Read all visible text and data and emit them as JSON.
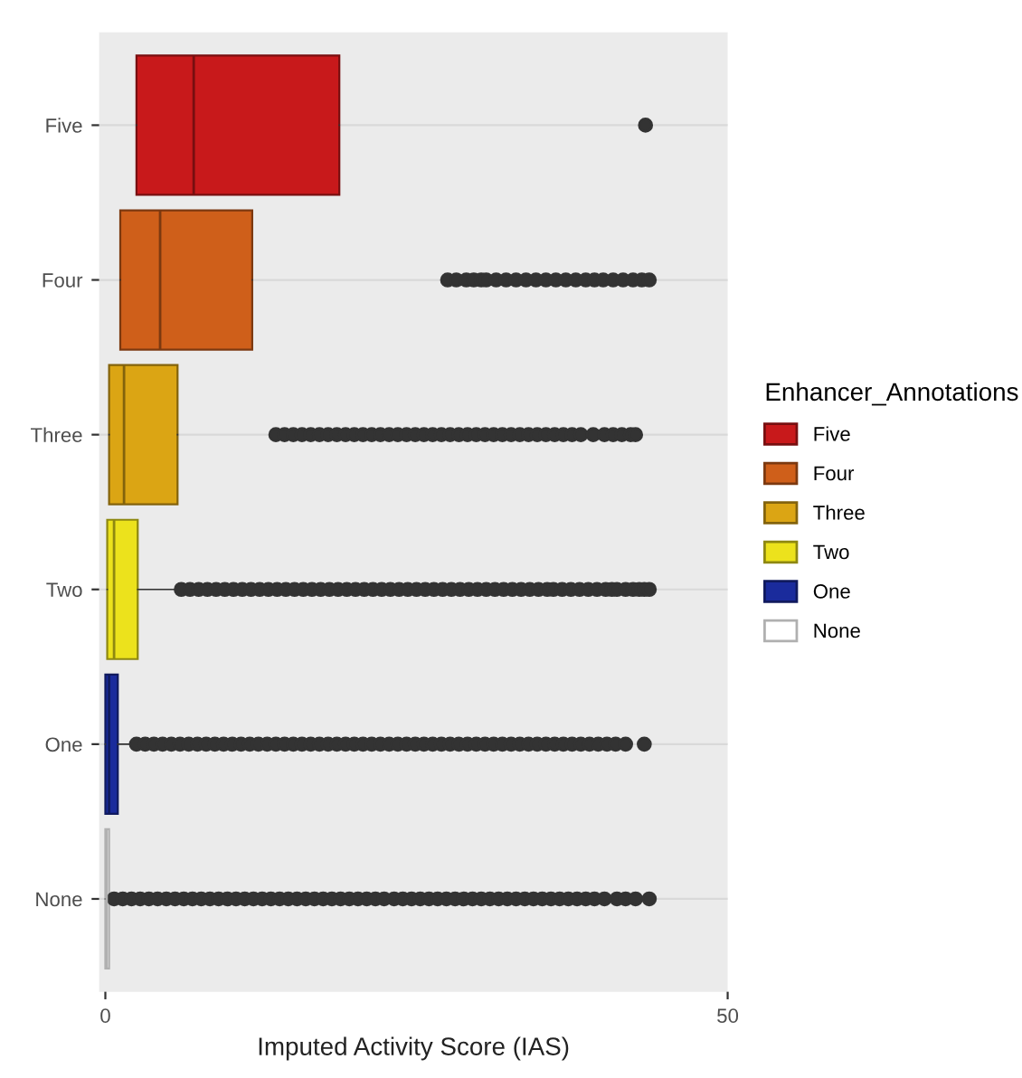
{
  "chart_data": {
    "type": "box",
    "orientation": "horizontal",
    "categories": [
      "Five",
      "Four",
      "Three",
      "Two",
      "One",
      "None"
    ],
    "series": [
      {
        "name": "Five",
        "color": "#c8191b",
        "boxes": [
          {
            "low": 2.5,
            "q1": 2.5,
            "median": 7.1,
            "q3": 18.8,
            "high": 18.8,
            "outliers": [
              43.4
            ]
          },
          null,
          null,
          null,
          null,
          null
        ]
      },
      {
        "name": "Four",
        "color": "#cf5f1a",
        "boxes": [
          null,
          {
            "low": 1.2,
            "q1": 1.2,
            "median": 4.4,
            "q3": 11.8,
            "high": 11.8,
            "outliers": [
              27.5,
              28.2,
              29,
              29.6,
              30.2,
              30.6,
              31.4,
              32.2,
              33,
              33.8,
              34.6,
              35.4,
              36.2,
              37,
              37.8,
              38.6,
              39.3,
              40,
              40.8,
              41.6,
              42.4,
              43.1,
              43.7
            ]
          },
          null,
          null,
          null,
          null
        ]
      },
      {
        "name": "Three",
        "color": "#dba514",
        "boxes": [
          null,
          null,
          {
            "low": 0.3,
            "q1": 0.3,
            "median": 1.5,
            "q3": 5.8,
            "high": 5.8,
            "outliers": [
              13.7,
              14.4,
              15.1,
              15.8,
              16.5,
              17.2,
              17.9,
              18.6,
              19.3,
              20,
              20.7,
              21.4,
              22.1,
              22.8,
              23.5,
              24.2,
              24.9,
              25.6,
              26.3,
              27,
              27.7,
              28.4,
              29.1,
              29.8,
              30.5,
              31.2,
              31.9,
              32.6,
              33.3,
              34,
              34.7,
              35.4,
              36.1,
              36.8,
              37.5,
              38.2,
              39.2,
              40.1,
              40.8,
              41.5,
              42.2,
              42.6
            ]
          },
          null,
          null,
          null
        ]
      },
      {
        "name": "Two",
        "color": "#ece21c",
        "boxes": [
          null,
          null,
          null,
          {
            "low": 0.15,
            "q1": 0.15,
            "median": 0.7,
            "q3": 2.6,
            "high": 6,
            "outliers": [
              6.1,
              6.8,
              7.5,
              8.2,
              8.9,
              9.6,
              10.3,
              11,
              11.7,
              12.4,
              13.1,
              13.8,
              14.5,
              15.2,
              15.9,
              16.6,
              17.3,
              18,
              18.7,
              19.4,
              20.1,
              20.8,
              21.5,
              22.2,
              22.9,
              23.6,
              24.3,
              25,
              25.7,
              26.4,
              27.1,
              27.8,
              28.5,
              29.2,
              29.9,
              30.6,
              31.3,
              32,
              32.7,
              33.4,
              34.1,
              34.8,
              35.5,
              36,
              36.7,
              37.4,
              38.1,
              38.8,
              39.5,
              40.2,
              40.7,
              41.1,
              41.8,
              42.4,
              42.9,
              43.3,
              43.7
            ]
          },
          null,
          null
        ]
      },
      {
        "name": "One",
        "color": "#1a2b9c",
        "boxes": [
          null,
          null,
          null,
          null,
          {
            "low": 0,
            "q1": 0,
            "median": 0.3,
            "q3": 1,
            "high": 2.4,
            "outliers": [
              2.5,
              3.2,
              3.9,
              4.6,
              5.3,
              6,
              6.7,
              7.4,
              8.1,
              8.8,
              9.5,
              10.2,
              10.9,
              11.6,
              12.3,
              13,
              13.7,
              14.4,
              15.1,
              15.8,
              16.5,
              17.2,
              17.9,
              18.6,
              19.3,
              20,
              20.7,
              21.4,
              22.1,
              22.8,
              23.5,
              24.2,
              24.9,
              25.6,
              26.3,
              27,
              27.7,
              28.4,
              29.1,
              29.8,
              30.5,
              31.2,
              31.9,
              32.6,
              33.3,
              34,
              34.7,
              35.4,
              36.1,
              36.8,
              37.5,
              38.2,
              38.9,
              39.6,
              40.3,
              41,
              41.8,
              43.3
            ]
          },
          null
        ]
      },
      {
        "name": "None",
        "color": "#ffffff",
        "boxes": [
          null,
          null,
          null,
          null,
          null,
          {
            "low": 0,
            "q1": 0,
            "median": 0.1,
            "q3": 0.3,
            "high": 0.6,
            "outliers": [
              0.7,
              1.4,
              2.1,
              2.8,
              3.5,
              4.2,
              4.9,
              5.6,
              6.3,
              7,
              7.7,
              8.4,
              9.1,
              9.8,
              10.5,
              11.2,
              11.9,
              12.6,
              13.3,
              14,
              14.7,
              15.4,
              16.1,
              16.8,
              17.5,
              18.2,
              18.9,
              19.6,
              20.3,
              21,
              21.7,
              22.4,
              23.2,
              23.9,
              24.6,
              25.3,
              26,
              26.7,
              27.4,
              28.1,
              28.8,
              29.5,
              30.2,
              30.9,
              31.6,
              32.3,
              33,
              33.7,
              34.4,
              35.1,
              35.8,
              36.5,
              37.2,
              37.9,
              38.6,
              39.3,
              40.1,
              41.1,
              41.8,
              42.6,
              43.7
            ]
          }
        ]
      }
    ],
    "xlabel": "Imputed Activity Score (IAS)",
    "xlim": [
      -0.5,
      50
    ],
    "xticks": [
      0,
      50
    ],
    "grid": "y",
    "legend": "right",
    "legend_title": "Enhancer_Annotations"
  }
}
